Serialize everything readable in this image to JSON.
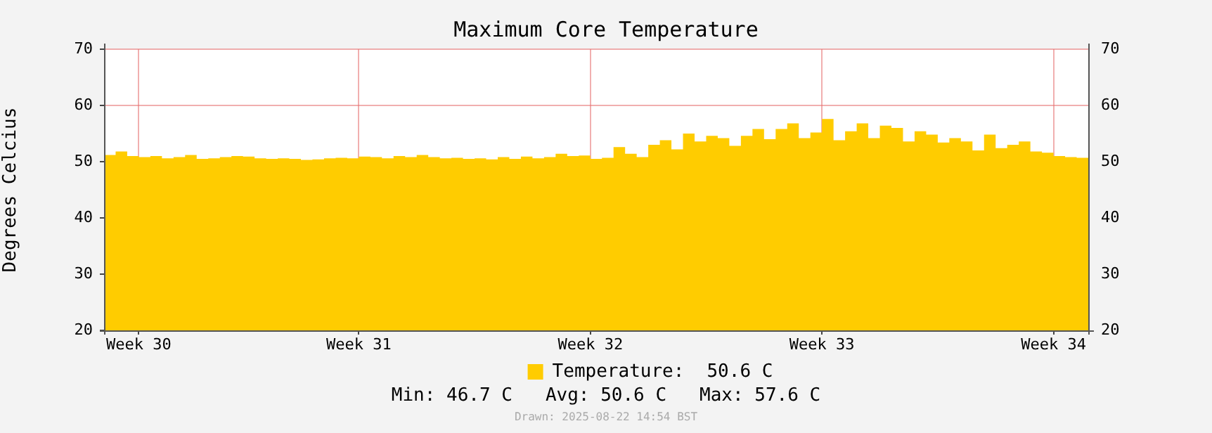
{
  "chart_data": {
    "type": "area",
    "title": "Maximum Core Temperature",
    "ylabel": "Degrees Celcius",
    "categories": [
      null,
      null,
      null,
      "Week 30",
      null,
      null,
      null,
      null,
      null,
      null,
      null,
      null,
      null,
      null,
      null,
      null,
      null,
      null,
      null,
      null,
      null,
      null,
      "Week 31",
      null,
      null,
      null,
      null,
      null,
      null,
      null,
      null,
      null,
      null,
      null,
      null,
      null,
      null,
      null,
      null,
      null,
      null,
      null,
      "Week 32",
      null,
      null,
      null,
      null,
      null,
      null,
      null,
      null,
      null,
      null,
      null,
      null,
      null,
      null,
      null,
      null,
      null,
      null,
      null,
      "Week 33",
      null,
      null,
      null,
      null,
      null,
      null,
      null,
      null,
      null,
      null,
      null,
      null,
      null,
      null,
      null,
      null,
      null,
      null,
      null,
      "Week 34",
      null,
      null,
      null
    ],
    "series": [
      {
        "name": "Temperature:",
        "color": "#ffcc00",
        "values": [
          51.2,
          51.8,
          51.0,
          50.8,
          51.0,
          50.6,
          50.8,
          51.2,
          50.5,
          50.6,
          50.8,
          51.0,
          50.9,
          50.6,
          50.5,
          50.6,
          50.5,
          50.3,
          50.4,
          50.6,
          50.7,
          50.6,
          50.9,
          50.8,
          50.6,
          51.0,
          50.8,
          51.2,
          50.8,
          50.6,
          50.7,
          50.5,
          50.6,
          50.4,
          50.8,
          50.5,
          50.9,
          50.6,
          50.8,
          51.4,
          51.0,
          51.1,
          50.5,
          50.7,
          52.6,
          51.4,
          50.8,
          53.0,
          53.8,
          52.2,
          55.0,
          53.6,
          54.6,
          54.2,
          52.8,
          54.6,
          55.8,
          54.0,
          55.8,
          56.8,
          54.2,
          55.2,
          57.6,
          53.8,
          55.4,
          56.8,
          54.2,
          56.4,
          56.0,
          53.6,
          55.4,
          54.8,
          53.4,
          54.2,
          53.6,
          52.0,
          54.8,
          52.4,
          53.0,
          53.6,
          51.8,
          51.6,
          51.0,
          50.8,
          50.7,
          50.6
        ]
      }
    ],
    "ylim": [
      20,
      70
    ],
    "yticks": [
      20,
      30,
      40,
      50,
      60,
      70
    ],
    "y2lim": [
      20,
      70
    ],
    "y2ticks": [
      20,
      30,
      40,
      50,
      60,
      70
    ],
    "grid": true,
    "legend": "bottom",
    "annotations": [
      "50.6 C",
      "Min: 46.7 C   Avg: 50.6 C   Max: 57.6 C",
      "Drawn: 2025-08-22 14:54 BST"
    ]
  }
}
